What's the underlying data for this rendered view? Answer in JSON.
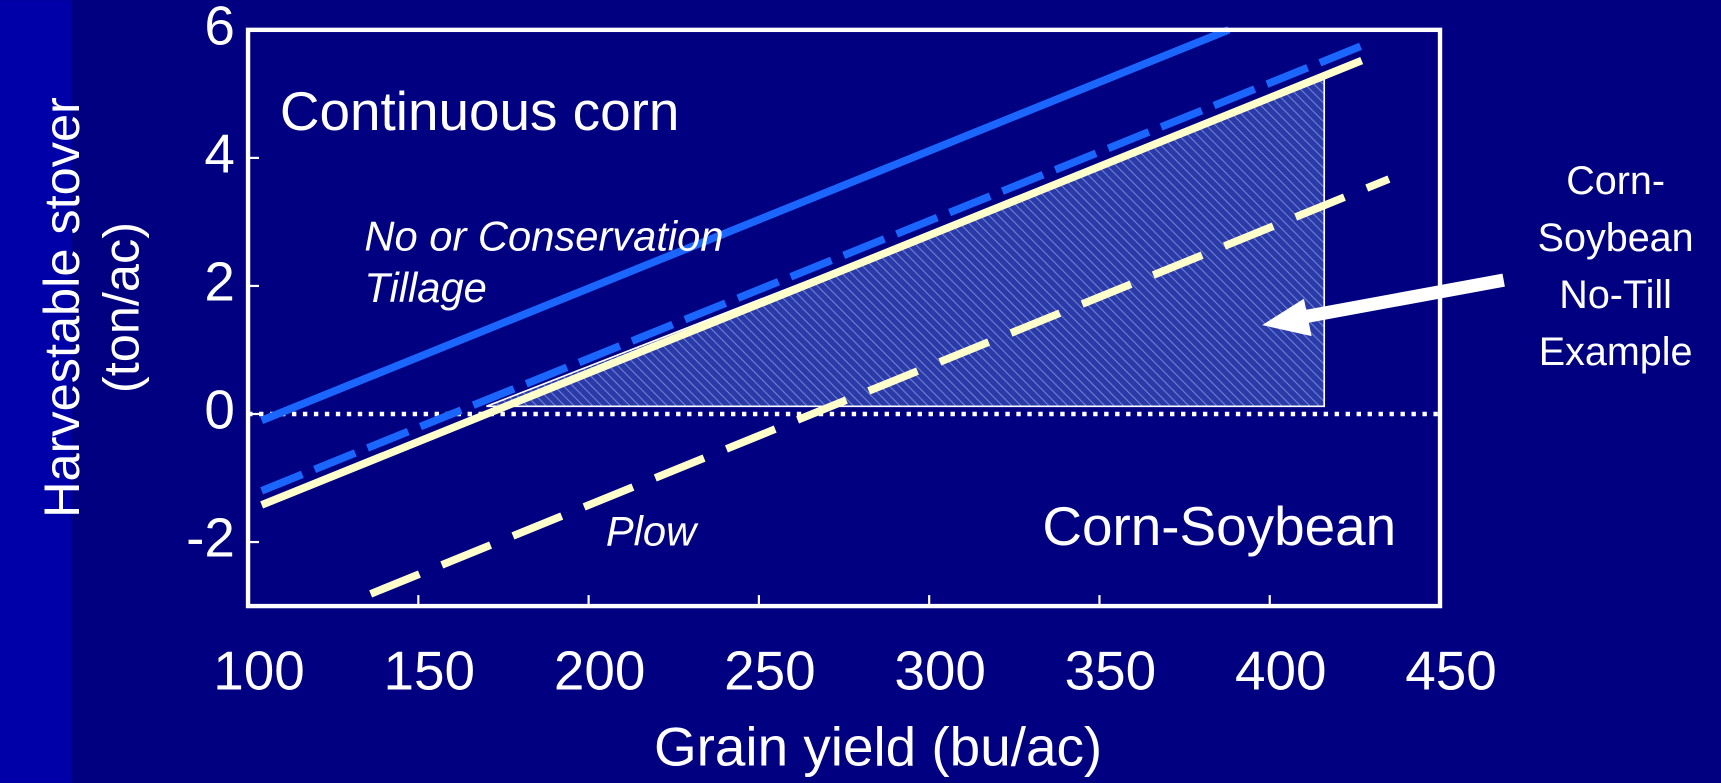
{
  "chart_data": {
    "type": "line",
    "xlabel": "Grain yield (bu/ac)",
    "ylabel": [
      "Harvestable stover",
      "(ton/ac)"
    ],
    "xlim": [
      100,
      450
    ],
    "xticks": [
      100,
      150,
      200,
      250,
      300,
      350,
      400,
      450
    ],
    "ylim": [
      -3,
      6
    ],
    "yticks": [
      -2,
      0,
      2,
      4,
      6
    ],
    "zero_line": 0,
    "series": [
      {
        "color": "#1a66ff",
        "dashed": false,
        "x": [
          104,
          388
        ],
        "values": [
          -0.1,
          6
        ]
      },
      {
        "color": "#1a66ff",
        "dashed": true,
        "x": [
          104,
          427
        ],
        "values": [
          -1.2,
          5.75
        ]
      },
      {
        "color": "#ffffcc",
        "dashed": false,
        "x": [
          104,
          427
        ],
        "values": [
          -1.42,
          5.52
        ]
      },
      {
        "color": "#ffffcc",
        "dashed": true,
        "x": [
          136,
          435
        ],
        "values": [
          -2.81,
          3.67
        ]
      }
    ],
    "shaded_region": {
      "x": [
        170,
        416,
        416
      ],
      "values": [
        0.12,
        0.12,
        5.23
      ]
    },
    "annotations": {
      "continuous": "Continuous corn",
      "tillage": [
        "No or Conservation",
        "Tillage"
      ],
      "plow": "Plow",
      "corn_soybean": "Corn-Soybean",
      "example": [
        "Corn-",
        "Soybean",
        "No-Till",
        "Example"
      ]
    }
  }
}
